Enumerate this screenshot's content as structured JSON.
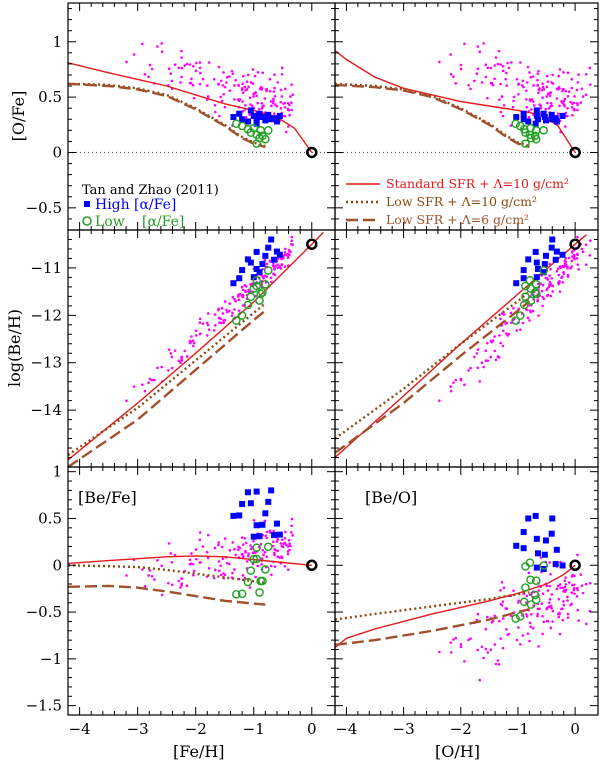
{
  "colors": {
    "standard": "#e41a1c",
    "low10": "#8b4a0f",
    "low6": "#a0522d",
    "high": "#0000ff",
    "low": "#22a022",
    "stars": "#ff00ff",
    "sun": "#000000",
    "refline": "#555555"
  },
  "chart_data": {
    "type": "scatter",
    "description_note": "2x3 panel figure of abundance ratios versus metallicity with chemical evolution model curves",
    "xlabels": [
      "[Fe/H]",
      "[O/H]"
    ],
    "x_ticks": [
      -4,
      -3,
      -2,
      -1,
      0
    ],
    "xlim": [
      -4.2,
      0.4
    ],
    "panels": [
      {
        "id": "ofe_feh",
        "ylabel": "[O/Fe]",
        "ylim": [
          -0.7,
          1.35
        ],
        "y_ticks": [
          -0.5,
          0,
          0.5,
          1
        ],
        "ref_line": 0,
        "sun": [
          0,
          0
        ],
        "models": [
          {
            "key": "standard",
            "dash": "",
            "points": [
              [
                -4.2,
                0.81
              ],
              [
                -3.5,
                0.72
              ],
              [
                -3,
                0.66
              ],
              [
                -2.5,
                0.6
              ],
              [
                -2,
                0.52
              ],
              [
                -1.5,
                0.44
              ],
              [
                -1,
                0.38
              ],
              [
                -0.6,
                0.32
              ],
              [
                -0.3,
                0.22
              ],
              [
                0,
                0
              ]
            ]
          },
          {
            "key": "low10",
            "dash": "2,3",
            "points": [
              [
                -4.2,
                0.62
              ],
              [
                -3.5,
                0.61
              ],
              [
                -3,
                0.58
              ],
              [
                -2.5,
                0.52
              ],
              [
                -2,
                0.4
              ],
              [
                -1.5,
                0.25
              ],
              [
                -1.2,
                0.14
              ],
              [
                -1,
                0.09
              ],
              [
                -0.8,
                0.06
              ]
            ]
          },
          {
            "key": "low6",
            "dash": "12,5",
            "points": [
              [
                -4.2,
                0.62
              ],
              [
                -3.5,
                0.6
              ],
              [
                -3,
                0.57
              ],
              [
                -2.5,
                0.51
              ],
              [
                -2,
                0.39
              ],
              [
                -1.5,
                0.24
              ],
              [
                -1.2,
                0.13
              ],
              [
                -1,
                0.08
              ],
              [
                -0.8,
                0.05
              ]
            ]
          }
        ]
      },
      {
        "id": "ofe_oh",
        "ylabel": "",
        "ylim": [
          -0.7,
          1.35
        ],
        "y_ticks": [
          -0.5,
          0,
          0.5,
          1
        ],
        "ref_line": 0,
        "sun": [
          0,
          0
        ],
        "models": [
          {
            "key": "standard",
            "dash": "",
            "points": [
              [
                -4.2,
                0.92
              ],
              [
                -4,
                0.84
              ],
              [
                -3.5,
                0.68
              ],
              [
                -3,
                0.58
              ],
              [
                -2.5,
                0.52
              ],
              [
                -2,
                0.46
              ],
              [
                -1.5,
                0.42
              ],
              [
                -1,
                0.38
              ],
              [
                -0.6,
                0.34
              ],
              [
                -0.3,
                0.24
              ],
              [
                0,
                0
              ]
            ]
          },
          {
            "key": "low10",
            "dash": "2,3",
            "points": [
              [
                -4.2,
                0.62
              ],
              [
                -3.5,
                0.6
              ],
              [
                -3,
                0.57
              ],
              [
                -2.5,
                0.51
              ],
              [
                -2,
                0.4
              ],
              [
                -1.5,
                0.26
              ],
              [
                -1.2,
                0.15
              ],
              [
                -1,
                0.09
              ],
              [
                -0.8,
                0.06
              ]
            ]
          },
          {
            "key": "low6",
            "dash": "12,5",
            "points": [
              [
                -4.2,
                0.61
              ],
              [
                -3.5,
                0.59
              ],
              [
                -3,
                0.56
              ],
              [
                -2.5,
                0.5
              ],
              [
                -2,
                0.39
              ],
              [
                -1.5,
                0.25
              ],
              [
                -1.2,
                0.14
              ],
              [
                -1,
                0.08
              ],
              [
                -0.8,
                0.05
              ]
            ]
          }
        ]
      },
      {
        "id": "beh_feh",
        "ylabel": "log(Be/H)",
        "ylim": [
          -15.2,
          -10.2
        ],
        "y_ticks": [
          -14,
          -13,
          -12,
          -11
        ],
        "ref_line": null,
        "sun": [
          0,
          -10.5
        ],
        "models": [
          {
            "key": "standard",
            "dash": "",
            "points": [
              [
                -4.2,
                -15.05
              ],
              [
                -3,
                -13.85
              ],
              [
                -2,
                -12.8
              ],
              [
                -1,
                -11.72
              ],
              [
                0,
                -10.5
              ],
              [
                0.2,
                -10.25
              ]
            ]
          },
          {
            "key": "low10",
            "dash": "2,3",
            "points": [
              [
                -4.2,
                -14.95
              ],
              [
                -3,
                -13.95
              ],
              [
                -2,
                -12.95
              ],
              [
                -1,
                -11.95
              ],
              [
                -0.8,
                -11.75
              ]
            ]
          },
          {
            "key": "low6",
            "dash": "12,5",
            "points": [
              [
                -4.2,
                -15.2
              ],
              [
                -3,
                -14.2
              ],
              [
                -2,
                -13.15
              ],
              [
                -1,
                -12.1
              ],
              [
                -0.8,
                -11.9
              ]
            ]
          }
        ]
      },
      {
        "id": "beh_oh",
        "ylabel": "",
        "ylim": [
          -15.2,
          -10.2
        ],
        "y_ticks": [
          -14,
          -13,
          -12,
          -11
        ],
        "ref_line": null,
        "sun": [
          0,
          -10.5
        ],
        "models": [
          {
            "key": "standard",
            "dash": "",
            "points": [
              [
                -4.2,
                -15.0
              ],
              [
                -3,
                -13.7
              ],
              [
                -2,
                -12.6
              ],
              [
                -1,
                -11.55
              ],
              [
                0,
                -10.5
              ],
              [
                0.2,
                -10.3
              ]
            ]
          },
          {
            "key": "low10",
            "dash": "2,3",
            "points": [
              [
                -4.2,
                -14.6
              ],
              [
                -3,
                -13.55
              ],
              [
                -2,
                -12.6
              ],
              [
                -1,
                -11.7
              ],
              [
                -0.8,
                -11.5
              ]
            ]
          },
          {
            "key": "low6",
            "dash": "12,5",
            "points": [
              [
                -4.2,
                -14.9
              ],
              [
                -3,
                -13.85
              ],
              [
                -2,
                -12.85
              ],
              [
                -1,
                -11.9
              ],
              [
                -0.8,
                -11.7
              ]
            ]
          }
        ]
      },
      {
        "id": "befe_feh",
        "ylabel": "",
        "ylim": [
          -1.6,
          1.05
        ],
        "y_ticks": [
          -1.5,
          -1,
          -0.5,
          0,
          0.5,
          1
        ],
        "ref_line": null,
        "sun": [
          0,
          0
        ],
        "models": [
          {
            "key": "standard",
            "dash": "",
            "points": [
              [
                -4.2,
                0.02
              ],
              [
                -3.5,
                0.05
              ],
              [
                -3,
                0.07
              ],
              [
                -2.5,
                0.09
              ],
              [
                -2,
                0.1
              ],
              [
                -1.5,
                0.09
              ],
              [
                -1,
                0.06
              ],
              [
                -0.5,
                0.03
              ],
              [
                0,
                0
              ]
            ]
          },
          {
            "key": "low10",
            "dash": "2,3",
            "points": [
              [
                -4.2,
                0.0
              ],
              [
                -3.5,
                -0.01
              ],
              [
                -3,
                -0.02
              ],
              [
                -2.5,
                -0.05
              ],
              [
                -2,
                -0.09
              ],
              [
                -1.5,
                -0.13
              ],
              [
                -1,
                -0.17
              ],
              [
                -0.8,
                -0.19
              ]
            ]
          },
          {
            "key": "low6",
            "dash": "12,5",
            "points": [
              [
                -4.2,
                -0.23
              ],
              [
                -3.5,
                -0.22
              ],
              [
                -3,
                -0.24
              ],
              [
                -2.5,
                -0.28
              ],
              [
                -2,
                -0.33
              ],
              [
                -1.5,
                -0.38
              ],
              [
                -1,
                -0.41
              ],
              [
                -0.8,
                -0.42
              ]
            ]
          }
        ]
      },
      {
        "id": "beo_oh",
        "ylabel": "",
        "ylim": [
          -1.6,
          1.05
        ],
        "y_ticks": [
          -1.5,
          -1,
          -0.5,
          0,
          0.5,
          1
        ],
        "ref_line": null,
        "sun": [
          0,
          0
        ],
        "models": [
          {
            "key": "standard",
            "dash": "",
            "points": [
              [
                -4.2,
                -0.88
              ],
              [
                -4,
                -0.78
              ],
              [
                -3.5,
                -0.68
              ],
              [
                -3,
                -0.6
              ],
              [
                -2.5,
                -0.52
              ],
              [
                -2,
                -0.45
              ],
              [
                -1.5,
                -0.38
              ],
              [
                -1,
                -0.3
              ],
              [
                -0.5,
                -0.2
              ],
              [
                -0.2,
                -0.1
              ],
              [
                0,
                0
              ]
            ]
          },
          {
            "key": "low10",
            "dash": "2,3",
            "points": [
              [
                -4.2,
                -0.58
              ],
              [
                -3.5,
                -0.52
              ],
              [
                -3,
                -0.48
              ],
              [
                -2.5,
                -0.44
              ],
              [
                -2,
                -0.4
              ],
              [
                -1.5,
                -0.36
              ],
              [
                -1,
                -0.31
              ],
              [
                -0.8,
                -0.29
              ]
            ]
          },
          {
            "key": "low6",
            "dash": "12,5",
            "points": [
              [
                -4.2,
                -0.85
              ],
              [
                -3.5,
                -0.8
              ],
              [
                -3,
                -0.75
              ],
              [
                -2.5,
                -0.7
              ],
              [
                -2,
                -0.64
              ],
              [
                -1.5,
                -0.58
              ],
              [
                -1,
                -0.5
              ],
              [
                -0.8,
                -0.47
              ]
            ]
          }
        ]
      }
    ],
    "stars": {
      "high": [
        [
          -1.0,
          0.33
        ],
        [
          -0.95,
          0.3
        ],
        [
          -1.25,
          0.35
        ],
        [
          -1.2,
          0.3
        ],
        [
          -1.1,
          0.28
        ],
        [
          -0.9,
          0.35
        ],
        [
          -0.85,
          0.32
        ],
        [
          -0.8,
          0.29
        ],
        [
          -0.75,
          0.34
        ],
        [
          -0.7,
          0.3
        ],
        [
          -0.65,
          0.31
        ],
        [
          -0.6,
          0.28
        ],
        [
          -1.35,
          0.32
        ],
        [
          -1.05,
          0.38
        ],
        [
          -0.95,
          0.26
        ],
        [
          -0.55,
          0.33
        ]
      ],
      "low": [
        [
          -1.3,
          0.26
        ],
        [
          -1.1,
          0.21
        ],
        [
          -1.05,
          0.18
        ],
        [
          -1.0,
          0.22
        ],
        [
          -0.95,
          0.16
        ],
        [
          -0.9,
          0.13
        ],
        [
          -0.85,
          0.15
        ],
        [
          -0.8,
          0.12
        ],
        [
          -0.95,
          0.08
        ],
        [
          -0.75,
          0.2
        ],
        [
          -1.2,
          0.24
        ],
        [
          -0.88,
          0.2
        ]
      ],
      "field_seed": 7,
      "field_count": 170
    },
    "annotations": {
      "source": "Tan and Zhao (2011)",
      "high_label": "High",
      "low_label": "Low",
      "alpha_fe": "[α/Fe]",
      "befe_label": "[Be/Fe]",
      "beo_label": "[Be/O]"
    },
    "legend": [
      {
        "key": "standard",
        "label": "Standard SFR + Λ=10 g/cm²"
      },
      {
        "key": "low10",
        "label": "Low   SFR + Λ=10 g/cm²"
      },
      {
        "key": "low6",
        "label": "Low   SFR + Λ=6 g/cm²"
      }
    ]
  }
}
